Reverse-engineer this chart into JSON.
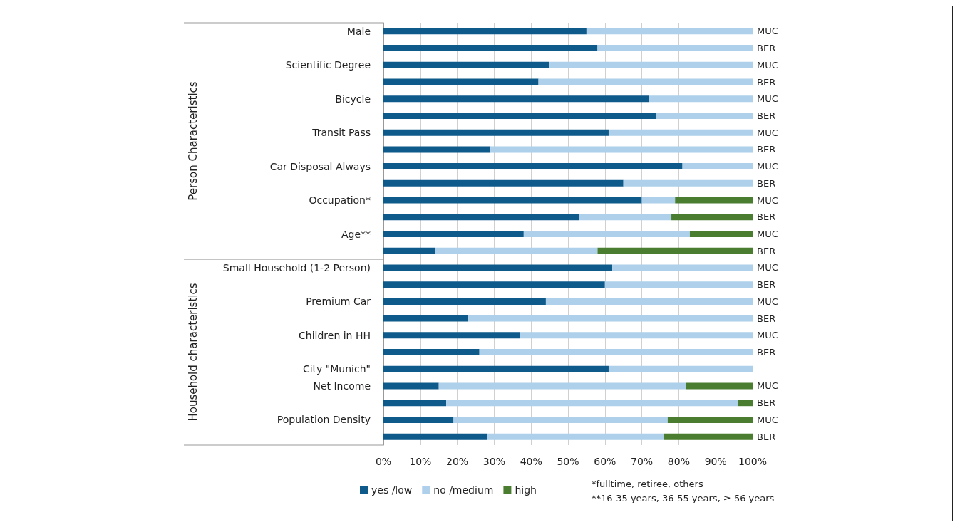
{
  "chart_data": {
    "type": "bar",
    "orientation": "horizontal",
    "stacked": true,
    "categories": [
      "Male",
      null,
      "Scientific Degree",
      null,
      "Bicycle",
      null,
      "Transit Pass",
      null,
      "Car Disposal Always",
      null,
      "Occupation*",
      null,
      "Age**",
      null,
      "Small Household (1-2 Person)",
      null,
      "Premium Car",
      null,
      "Children in HH",
      null,
      "City \"Munich\"",
      "Net Income",
      null,
      "Population Density",
      null
    ],
    "y2_categories": [
      "MUC",
      "BER",
      "MUC",
      "BER",
      "MUC",
      "BER",
      "MUC",
      "BER",
      "MUC",
      "BER",
      "MUC",
      "BER",
      "MUC",
      "BER",
      "MUC",
      "BER",
      "MUC",
      "BER",
      "MUC",
      "BER",
      null,
      "MUC",
      "BER",
      "MUC",
      "BER"
    ],
    "series": [
      {
        "name": "yes /low",
        "color": "#0e5a8a",
        "values": [
          55,
          58,
          45,
          42,
          72,
          74,
          61,
          29,
          81,
          65,
          70,
          53,
          38,
          14,
          62,
          60,
          44,
          23,
          37,
          26,
          61,
          15,
          17,
          19,
          28
        ]
      },
      {
        "name": "no /medium",
        "color": "#aed0ea",
        "values": [
          45,
          42,
          55,
          58,
          28,
          26,
          39,
          71,
          19,
          35,
          9,
          25,
          45,
          44,
          38,
          40,
          56,
          77,
          63,
          74,
          39,
          67,
          79,
          58,
          48
        ]
      },
      {
        "name": "high",
        "color": "#4a7d2f",
        "values": [
          null,
          null,
          null,
          null,
          null,
          null,
          null,
          null,
          null,
          null,
          21,
          22,
          17,
          42,
          null,
          null,
          null,
          null,
          null,
          null,
          null,
          18,
          4,
          23,
          24
        ]
      }
    ],
    "xlim": [
      0,
      100
    ],
    "xticks": [
      {
        "value": 0,
        "label": "0%"
      },
      {
        "value": 10,
        "label": "10%"
      },
      {
        "value": 20,
        "label": "20%"
      },
      {
        "value": 30,
        "label": "30%"
      },
      {
        "value": 40,
        "label": "40%"
      },
      {
        "value": 50,
        "label": "50%"
      },
      {
        "value": 60,
        "label": "60%"
      },
      {
        "value": 70,
        "label": "70%"
      },
      {
        "value": 80,
        "label": "80%"
      },
      {
        "value": 90,
        "label": "90%"
      },
      {
        "value": 100,
        "label": "100%"
      }
    ],
    "grid": "x",
    "legend": "bottom",
    "annotations": [
      "Person Characteristics",
      "Household characteristics",
      "*fulltime, retiree, others",
      "**16-35 years, 36-55 years, ≥ 56 years"
    ]
  }
}
